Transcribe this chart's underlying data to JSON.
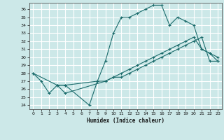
{
  "xlabel": "Humidex (Indice chaleur)",
  "bg_color": "#cce8e8",
  "grid_color": "#ffffff",
  "line_color": "#1a6b6b",
  "xlim": [
    -0.5,
    23.5
  ],
  "ylim": [
    23.5,
    36.8
  ],
  "yticks": [
    24,
    25,
    26,
    27,
    28,
    29,
    30,
    31,
    32,
    33,
    34,
    35,
    36
  ],
  "xticks": [
    0,
    1,
    2,
    3,
    4,
    5,
    6,
    7,
    8,
    9,
    10,
    11,
    12,
    13,
    14,
    15,
    16,
    17,
    18,
    19,
    20,
    21,
    22,
    23
  ],
  "line1_x": [
    0,
    1,
    2,
    3,
    4,
    7,
    8,
    9,
    10,
    11,
    12,
    13,
    14,
    15,
    16,
    17,
    18,
    19,
    20,
    21,
    22,
    23
  ],
  "line1_y": [
    28,
    27,
    25.5,
    26.5,
    26.5,
    24,
    27,
    29.5,
    33,
    35,
    35,
    35.5,
    36,
    36.5,
    36.5,
    34,
    35,
    34.5,
    34,
    31,
    30.5,
    30
  ],
  "line2_x": [
    0,
    3,
    4,
    8,
    9,
    10,
    11,
    12,
    13,
    14,
    15,
    16,
    17,
    18,
    19,
    20,
    21,
    22,
    23
  ],
  "line2_y": [
    28,
    26.5,
    26.5,
    27,
    27,
    27.5,
    27.5,
    28,
    28.5,
    29,
    29.5,
    30,
    30.5,
    31,
    31.5,
    32,
    32.5,
    29.5,
    29.5
  ],
  "line3_x": [
    3,
    4,
    9,
    10,
    11,
    12,
    13,
    14,
    15,
    16,
    17,
    18,
    19,
    20,
    21,
    22,
    23
  ],
  "line3_y": [
    26.5,
    25.5,
    27,
    27.5,
    28,
    28.5,
    29,
    29.5,
    30,
    30.5,
    31,
    31.5,
    32,
    32.5,
    31,
    30.5,
    29.5
  ]
}
